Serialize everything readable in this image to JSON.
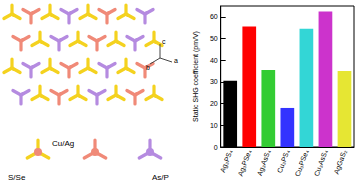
{
  "chart_data": {
    "type": "bar",
    "y_label": "Static SHG coefficient (pm/V)",
    "categories": [
      "Ag₃PS₄",
      "Ag₃PSe₄",
      "Ag₃AsS₄",
      "Cu₃PS₄",
      "Cu₃PSe₄",
      "Cu₃AsS₄",
      "AgGaS₂"
    ],
    "values": [
      30.5,
      55.5,
      35.5,
      18,
      54.5,
      62.5,
      35
    ],
    "colors": [
      "#000000",
      "#ff0000",
      "#33cc33",
      "#3333ff",
      "#33d6d6",
      "#cc33cc",
      "#e6e633"
    ],
    "ylim": [
      0,
      65
    ],
    "yticks": [
      0,
      10,
      20,
      30,
      40,
      50,
      60
    ],
    "grid": false
  },
  "diagram": {
    "axis_labels": [
      "a",
      "b",
      "c"
    ],
    "tetrahedron_labels": [
      "Cu/Ag",
      "S/Se",
      "As/P"
    ]
  }
}
